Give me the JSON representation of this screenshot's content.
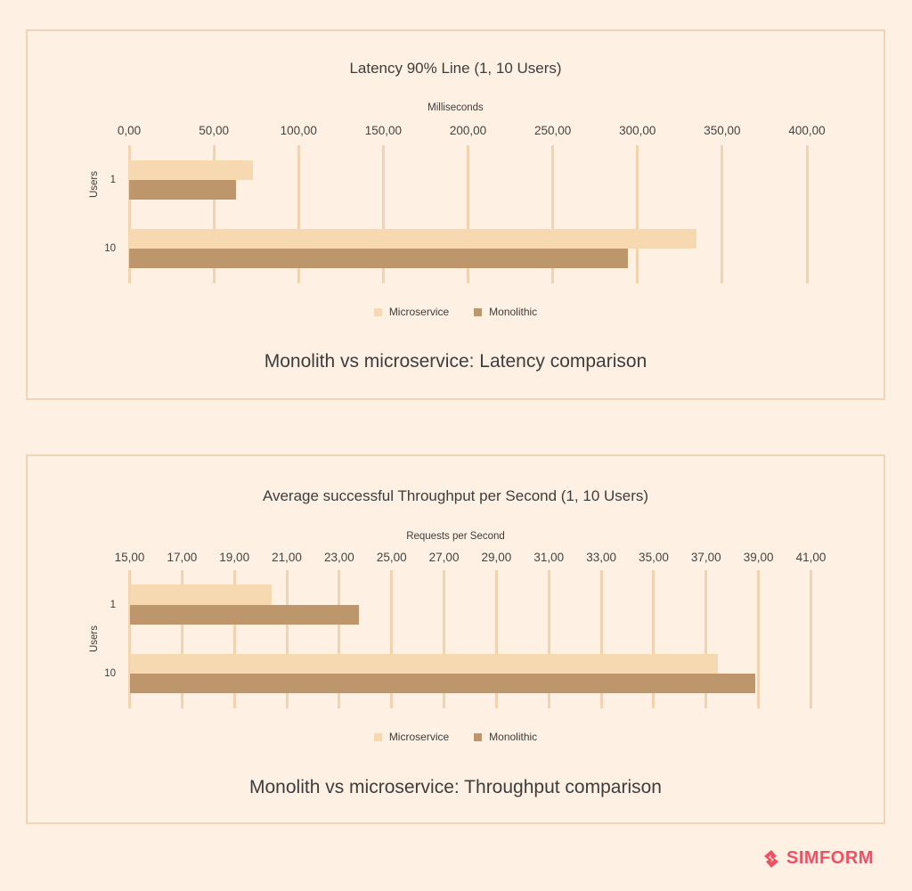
{
  "colors": {
    "background": "#fef1e3",
    "panel_border": "#f0d4b4",
    "gridline": "#f1d4af",
    "microservice": "#f6d8b1",
    "monolithic": "#bd966b",
    "brand": "#ef5064",
    "text": "#3d3d3d"
  },
  "chart_data": [
    {
      "type": "bar",
      "orientation": "horizontal",
      "title": "Latency 90% Line (1, 10 Users)",
      "xlabel": "Milliseconds",
      "ylabel": "Users",
      "categories": [
        "1",
        "10"
      ],
      "series": [
        {
          "name": "Microservice",
          "values": [
            73.3,
            335.0
          ]
        },
        {
          "name": "Monolithic",
          "values": [
            62.9,
            294.6
          ]
        }
      ],
      "xlim": [
        0,
        400
      ],
      "xticks": [
        "0,00",
        "50,00",
        "100,00",
        "150,00",
        "200,00",
        "250,00",
        "300,00",
        "350,00",
        "400,00"
      ],
      "xtick_values": [
        0,
        50,
        100,
        150,
        200,
        250,
        300,
        350,
        400
      ],
      "grid": true,
      "legend_position": "bottom",
      "caption": "Monolith vs microservice: Latency comparison"
    },
    {
      "type": "bar",
      "orientation": "horizontal",
      "title": "Average successful Throughput per Second (1, 10 Users)",
      "xlabel": "Requests per Second",
      "ylabel": "Users",
      "categories": [
        "1",
        "10"
      ],
      "series": [
        {
          "name": "Microservice",
          "values": [
            20.42,
            37.45
          ]
        },
        {
          "name": "Monolithic",
          "values": [
            23.75,
            38.89
          ]
        }
      ],
      "xlim": [
        15,
        41
      ],
      "xticks": [
        "15,00",
        "17,00",
        "19,00",
        "21,00",
        "23,00",
        "25,00",
        "27,00",
        "29,00",
        "31,00",
        "33,00",
        "35,00",
        "37,00",
        "39,00",
        "41,00"
      ],
      "xtick_values": [
        15,
        17,
        19,
        21,
        23,
        25,
        27,
        29,
        31,
        33,
        35,
        37,
        39,
        41
      ],
      "grid": true,
      "legend_position": "bottom",
      "caption": "Monolith vs microservice: Throughput comparison"
    }
  ],
  "logo": {
    "text": "SIMFORM"
  }
}
